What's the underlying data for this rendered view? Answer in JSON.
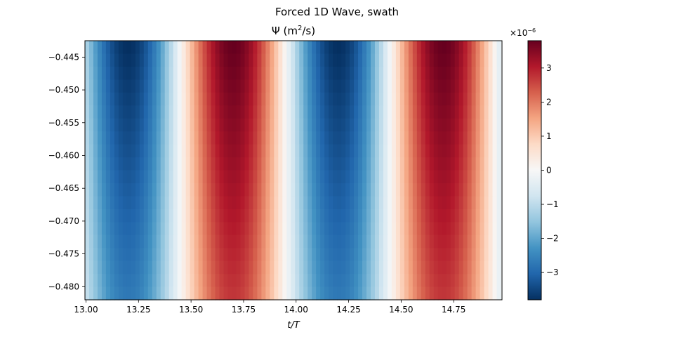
{
  "chart_data": {
    "type": "heatmap",
    "suptitle": "Forced 1D Wave, swath",
    "title": "Ψ (m²/s)",
    "title_parts": {
      "symbol": "Ψ (m",
      "sup": "2",
      "rest": "/s)"
    },
    "xlabel": "t/T",
    "ylabel": "",
    "xlim": [
      12.995,
      14.98
    ],
    "ylim": [
      -0.482,
      -0.4425
    ],
    "xticks": [
      13.0,
      13.25,
      13.5,
      13.75,
      14.0,
      14.25,
      14.5,
      14.75
    ],
    "xtick_labels": [
      "13.00",
      "13.25",
      "13.50",
      "13.75",
      "14.00",
      "14.25",
      "14.50",
      "14.75"
    ],
    "yticks": [
      -0.445,
      -0.45,
      -0.455,
      -0.46,
      -0.465,
      -0.47,
      -0.475,
      -0.48
    ],
    "ytick_labels": [
      "−0.445",
      "−0.450",
      "−0.455",
      "−0.460",
      "−0.465",
      "−0.470",
      "−0.475",
      "−0.480"
    ],
    "field": {
      "description_of_values": "psi(t,y) ≈ -3.8e-6 * cos(2π (t - 13.2)) * a(y)",
      "amplitude": 3.8e-06,
      "phase_min_t": 13.2,
      "period": 1.0,
      "t_start": 12.995,
      "t_end": 14.98,
      "dt": 0.02,
      "y_levels": 20,
      "amp_factor_top": 1.0,
      "amp_factor_bottom": 0.72
    },
    "colorbar": {
      "colormap": "RdBu_r",
      "vmin": -3.8e-06,
      "vmax": 3.8e-06,
      "ticks": [
        3,
        2,
        1,
        0,
        -1,
        -2,
        -3
      ],
      "tick_labels": [
        "3",
        "2",
        "1",
        "0",
        "−1",
        "−2",
        "−3"
      ],
      "scale_label_base": "×10",
      "scale_label_exp": "−6"
    }
  }
}
